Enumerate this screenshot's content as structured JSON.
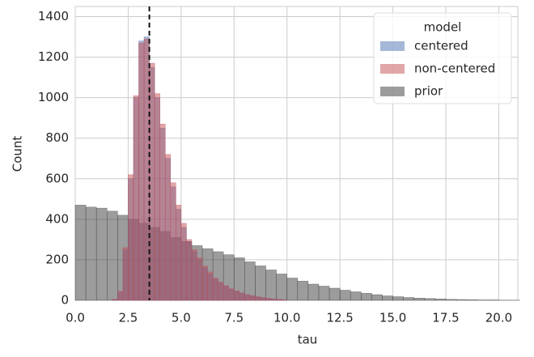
{
  "chart_data": {
    "type": "histogram",
    "xlabel": "tau",
    "ylabel": "Count",
    "legend_title": "model",
    "legend": "upper right",
    "grid": true,
    "xlim": [
      0,
      20.9
    ],
    "ylim": [
      0,
      1450
    ],
    "xticks": [
      {
        "value": 0,
        "label": "0.0"
      },
      2.5,
      {
        "value": 5,
        "label": "5.0"
      },
      7.5,
      {
        "value": 10,
        "label": "10.0"
      },
      12.5,
      {
        "value": 15,
        "label": "15.0"
      },
      17.5,
      {
        "value": 20,
        "label": "20.0"
      }
    ],
    "yticks": [
      0,
      200,
      400,
      600,
      800,
      1000,
      1200,
      1400
    ],
    "vline": 3.5,
    "series": [
      {
        "name": "centered",
        "color": "#4c72b0",
        "bins": [
          1.75,
          2.0,
          2.25,
          2.5,
          2.75,
          3.0,
          3.25,
          3.5,
          3.75,
          4.0,
          4.25,
          4.5,
          4.75,
          5.0,
          5.25,
          5.5,
          5.75,
          6.0,
          6.25,
          6.5,
          6.75,
          7.0,
          7.25,
          7.5,
          7.75,
          8.0,
          8.25,
          8.5,
          8.75,
          9.0,
          9.25,
          9.5,
          9.75,
          10.0
        ],
        "values": [
          5,
          40,
          250,
          600,
          1000,
          1280,
          1300,
          1150,
          1000,
          850,
          700,
          560,
          450,
          360,
          290,
          240,
          200,
          160,
          130,
          105,
          85,
          70,
          55,
          45,
          35,
          28,
          22,
          17,
          13,
          10,
          7,
          5,
          3
        ]
      },
      {
        "name": "non-centered",
        "color": "#c44e52",
        "bins": [
          1.75,
          2.0,
          2.25,
          2.5,
          2.75,
          3.0,
          3.25,
          3.5,
          3.75,
          4.0,
          4.25,
          4.5,
          4.75,
          5.0,
          5.25,
          5.5,
          5.75,
          6.0,
          6.25,
          6.5,
          6.75,
          7.0,
          7.25,
          7.5,
          7.75,
          8.0,
          8.25,
          8.5,
          8.75,
          9.0,
          9.25,
          9.5,
          9.75,
          10.0
        ],
        "values": [
          5,
          45,
          260,
          620,
          1010,
          1270,
          1290,
          1170,
          1020,
          870,
          720,
          580,
          470,
          380,
          300,
          250,
          210,
          170,
          140,
          110,
          90,
          72,
          58,
          47,
          37,
          29,
          23,
          18,
          14,
          10,
          7,
          5,
          3
        ]
      },
      {
        "name": "prior",
        "color": "#3a3a3a",
        "bins": [
          0,
          0.5,
          1,
          1.5,
          2,
          2.5,
          3,
          3.5,
          4,
          4.5,
          5,
          5.5,
          6,
          6.5,
          7,
          7.5,
          8,
          8.5,
          9,
          9.5,
          10,
          10.5,
          11,
          11.5,
          12,
          12.5,
          13,
          13.5,
          14,
          14.5,
          15,
          15.5,
          16,
          16.5,
          17,
          17.5,
          18,
          18.5,
          19,
          19.5,
          20,
          20.5,
          21
        ],
        "values": [
          470,
          460,
          455,
          440,
          420,
          400,
          380,
          360,
          340,
          310,
          290,
          270,
          255,
          240,
          225,
          210,
          190,
          170,
          150,
          130,
          110,
          95,
          80,
          70,
          60,
          50,
          42,
          35,
          28,
          22,
          18,
          14,
          11,
          9,
          7,
          5,
          4,
          3,
          2,
          2,
          1,
          1
        ]
      }
    ]
  }
}
